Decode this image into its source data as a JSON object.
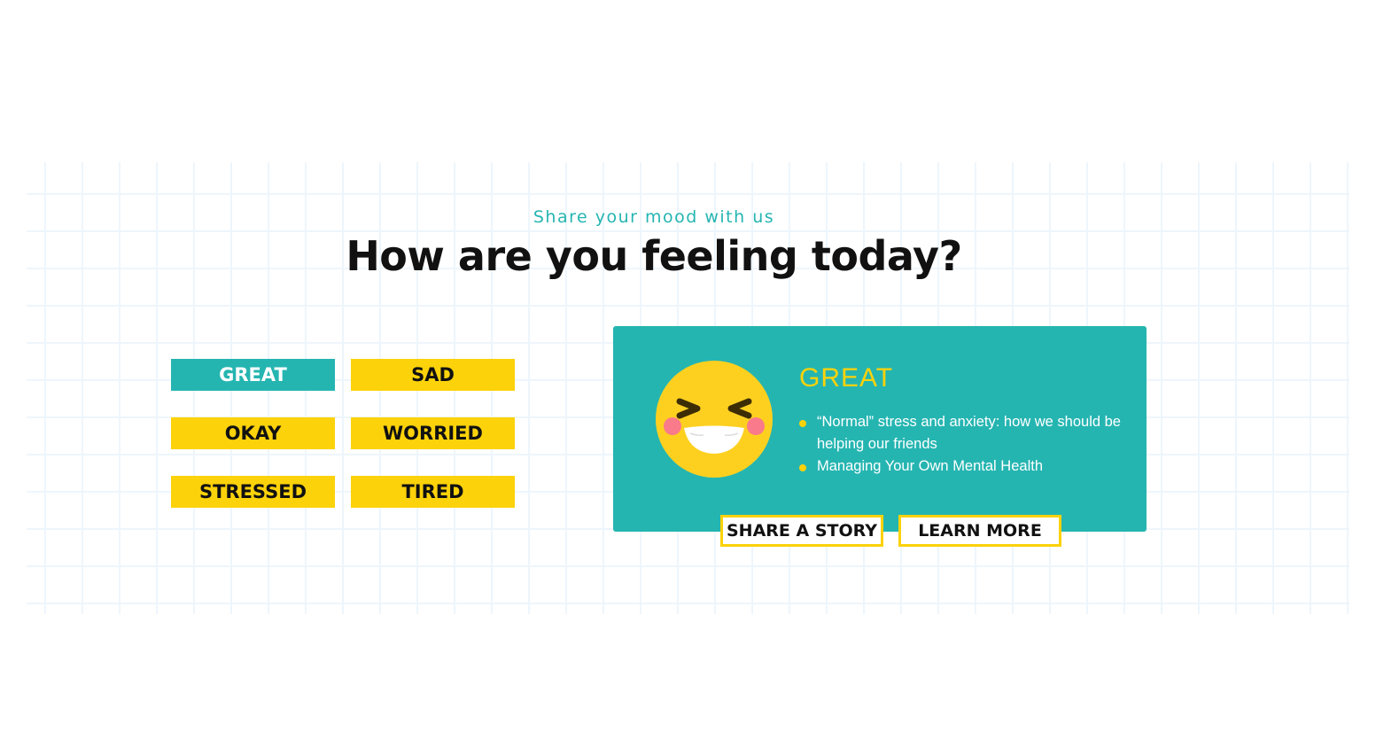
{
  "header": {
    "eyebrow": "Share your mood with us",
    "title": "How are you feeling today?"
  },
  "moods": [
    {
      "label": "GREAT",
      "selected": true
    },
    {
      "label": "SAD",
      "selected": false
    },
    {
      "label": "OKAY",
      "selected": false
    },
    {
      "label": "WORRIED",
      "selected": false
    },
    {
      "label": "STRESSED",
      "selected": false
    },
    {
      "label": "TIRED",
      "selected": false
    }
  ],
  "card": {
    "icon": "laughing-face-icon",
    "title": "GREAT",
    "links": [
      "“Normal” stress and anxiety: how we should be helping our friends",
      "Managing Your Own Mental Health"
    ],
    "share_label": "SHARE A STORY",
    "learn_label": "LEARN MORE"
  },
  "colors": {
    "teal": "#25b5b1",
    "yellow": "#fcd20a",
    "text": "#111111"
  }
}
